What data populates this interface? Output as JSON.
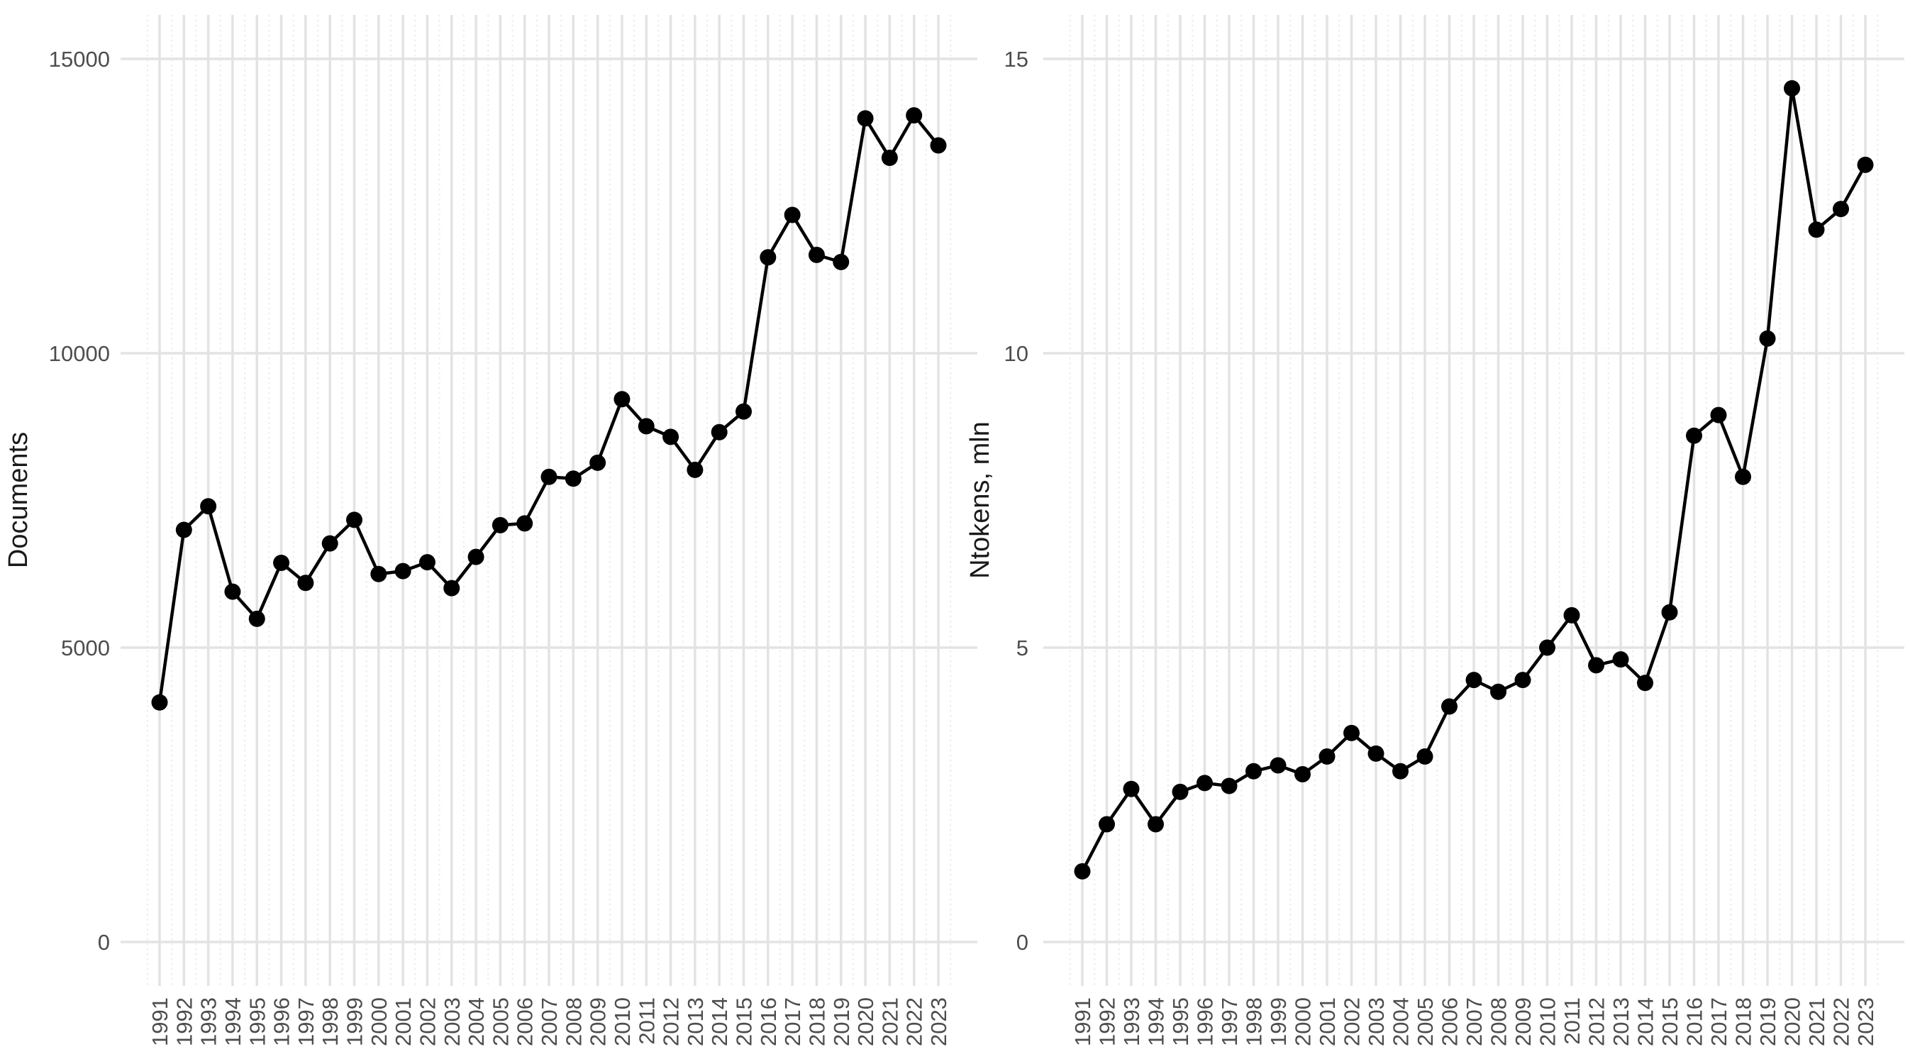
{
  "figure": {
    "background": "#ffffff",
    "panel_count": 2
  },
  "style": {
    "point_color": "#000000",
    "line_color": "#000000",
    "grid_major_color": "#e3e3e3",
    "grid_minor_color": "#ececec",
    "tick_label_color": "#4d4d4d",
    "axis_title_color": "#1a1a1a",
    "background": "#ffffff"
  },
  "chart_data": [
    {
      "id": "documents-per-year",
      "type": "line",
      "title": "",
      "xlabel": "",
      "ylabel": "Documents",
      "legend_position": "none",
      "grid": "major horizontal at yticks; major vertical per year; dotted minor vertical at half-years",
      "categories": [
        1991,
        1992,
        1993,
        1994,
        1995,
        1996,
        1997,
        1998,
        1999,
        2000,
        2001,
        2002,
        2003,
        2004,
        2005,
        2006,
        2007,
        2008,
        2009,
        2010,
        2011,
        2012,
        2013,
        2014,
        2015,
        2016,
        2017,
        2018,
        2019,
        2020,
        2021,
        2022,
        2023
      ],
      "values": [
        4070,
        7000,
        7400,
        5950,
        5490,
        6440,
        6100,
        6770,
        7170,
        6250,
        6300,
        6450,
        6010,
        6540,
        7080,
        7110,
        7900,
        7870,
        8140,
        9220,
        8760,
        8580,
        8020,
        8660,
        9010,
        11630,
        12350,
        11670,
        11550,
        13990,
        13320,
        14040,
        13530
      ],
      "ylim": [
        0,
        15000
      ],
      "yticks": [
        0,
        5000,
        10000,
        15000
      ],
      "ytick_labels": [
        "0",
        "5000",
        "10000",
        "15000"
      ]
    },
    {
      "id": "ntokens-per-year",
      "type": "line",
      "title": "",
      "xlabel": "",
      "ylabel": "Ntokens, mln",
      "legend_position": "none",
      "grid": "major horizontal at yticks; major vertical per year; dotted minor vertical at half-years",
      "categories": [
        1991,
        1992,
        1993,
        1994,
        1995,
        1996,
        1997,
        1998,
        1999,
        2000,
        2001,
        2002,
        2003,
        2004,
        2005,
        2006,
        2007,
        2008,
        2009,
        2010,
        2011,
        2012,
        2013,
        2014,
        2015,
        2016,
        2017,
        2018,
        2019,
        2020,
        2021,
        2022,
        2023
      ],
      "values": [
        1.2,
        2.0,
        2.6,
        2.0,
        2.55,
        2.7,
        2.65,
        2.9,
        3.0,
        2.85,
        3.15,
        3.55,
        3.2,
        2.9,
        3.15,
        4.0,
        4.45,
        4.25,
        4.45,
        5.0,
        5.55,
        4.7,
        4.8,
        4.4,
        5.6,
        8.6,
        8.95,
        7.9,
        10.25,
        14.5,
        12.1,
        12.45,
        13.2
      ],
      "ylim": [
        0,
        15
      ],
      "yticks": [
        0,
        5,
        10,
        15
      ],
      "ytick_labels": [
        "0",
        "5",
        "10",
        "15"
      ]
    }
  ]
}
